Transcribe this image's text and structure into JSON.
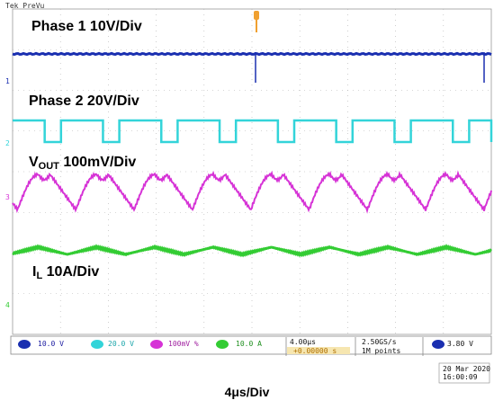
{
  "scope": {
    "brand": "Tek PreVu",
    "colors": {
      "ch1": "#1a2fb0",
      "ch2": "#33d4d9",
      "ch3": "#d633d6",
      "ch4": "#33cc33",
      "grid": "#b0b0b0",
      "trigger": "#f0a030"
    }
  },
  "labels": {
    "phase1": "Phase 1 10V/Div",
    "phase2": "Phase 2 20V/Div",
    "vout_main": "V",
    "vout_sub": "OUT",
    "vout_rest": " 100mV/Div",
    "il_main": "I",
    "il_sub": "L",
    "il_rest": " 10A/Div"
  },
  "markers": {
    "ch1": "1",
    "ch2": "2",
    "ch3": "3",
    "ch4": "4"
  },
  "status": {
    "ch1": "10.0 V",
    "ch2": "20.0 V",
    "ch3": "100mV %",
    "ch4": "10.0 A",
    "time_div": "4.00μs",
    "trig_pos": "+0.00000 s",
    "sample_rate": "2.50GS/s",
    "record": "1M points",
    "trig_level": "3.80 V",
    "date": "20 Mar 2020",
    "time": "16:00:09"
  },
  "timebase_label": "4μs/Div"
}
